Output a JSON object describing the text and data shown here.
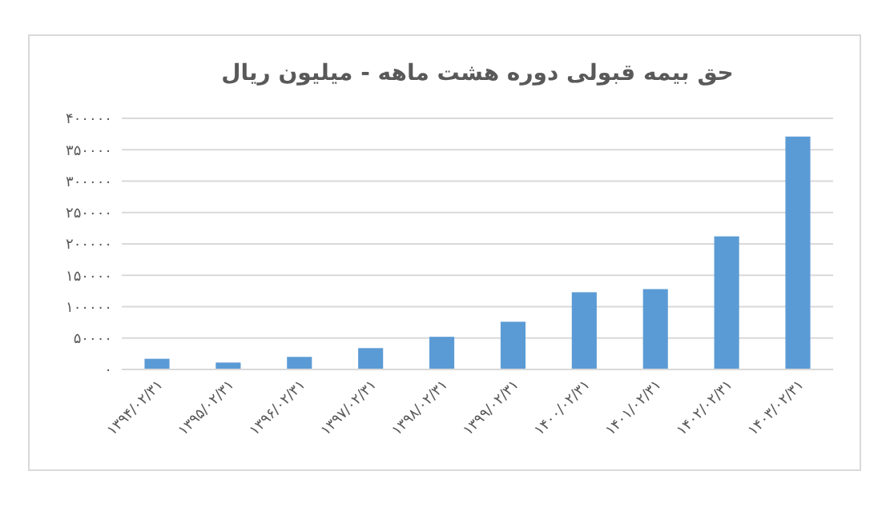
{
  "chart_data": {
    "type": "bar",
    "title": "حق بیمه قبولی دوره هشت ماهه - میلیون ریال",
    "categories": [
      "۱۳۹۴/۰۲/۳۱",
      "۱۳۹۵/۰۲/۳۱",
      "۱۳۹۶/۰۲/۳۱",
      "۱۳۹۷/۰۲/۳۱",
      "۱۳۹۸/۰۲/۳۱",
      "۱۳۹۹/۰۲/۳۱",
      "۱۴۰۰/۰۲/۳۱",
      "۱۴۰۱/۰۲/۳۱",
      "۱۴۰۲/۰۲/۳۱",
      "۱۴۰۳/۰۲/۳۱"
    ],
    "values": [
      17000,
      11000,
      20000,
      34000,
      52000,
      76000,
      123000,
      128000,
      212000,
      371000
    ],
    "color": "#5b9bd5",
    "ylim": [
      0,
      400000
    ],
    "yticks": [
      {
        "value": 0,
        "label": "۰"
      },
      {
        "value": 50000,
        "label": "۵۰۰۰۰"
      },
      {
        "value": 100000,
        "label": "۱۰۰۰۰۰"
      },
      {
        "value": 150000,
        "label": "۱۵۰۰۰۰"
      },
      {
        "value": 200000,
        "label": "۲۰۰۰۰۰"
      },
      {
        "value": 250000,
        "label": "۲۵۰۰۰۰"
      },
      {
        "value": 300000,
        "label": "۳۰۰۰۰۰"
      },
      {
        "value": 350000,
        "label": "۳۵۰۰۰۰"
      },
      {
        "value": 400000,
        "label": "۴۰۰۰۰۰"
      }
    ],
    "grid": "y"
  }
}
